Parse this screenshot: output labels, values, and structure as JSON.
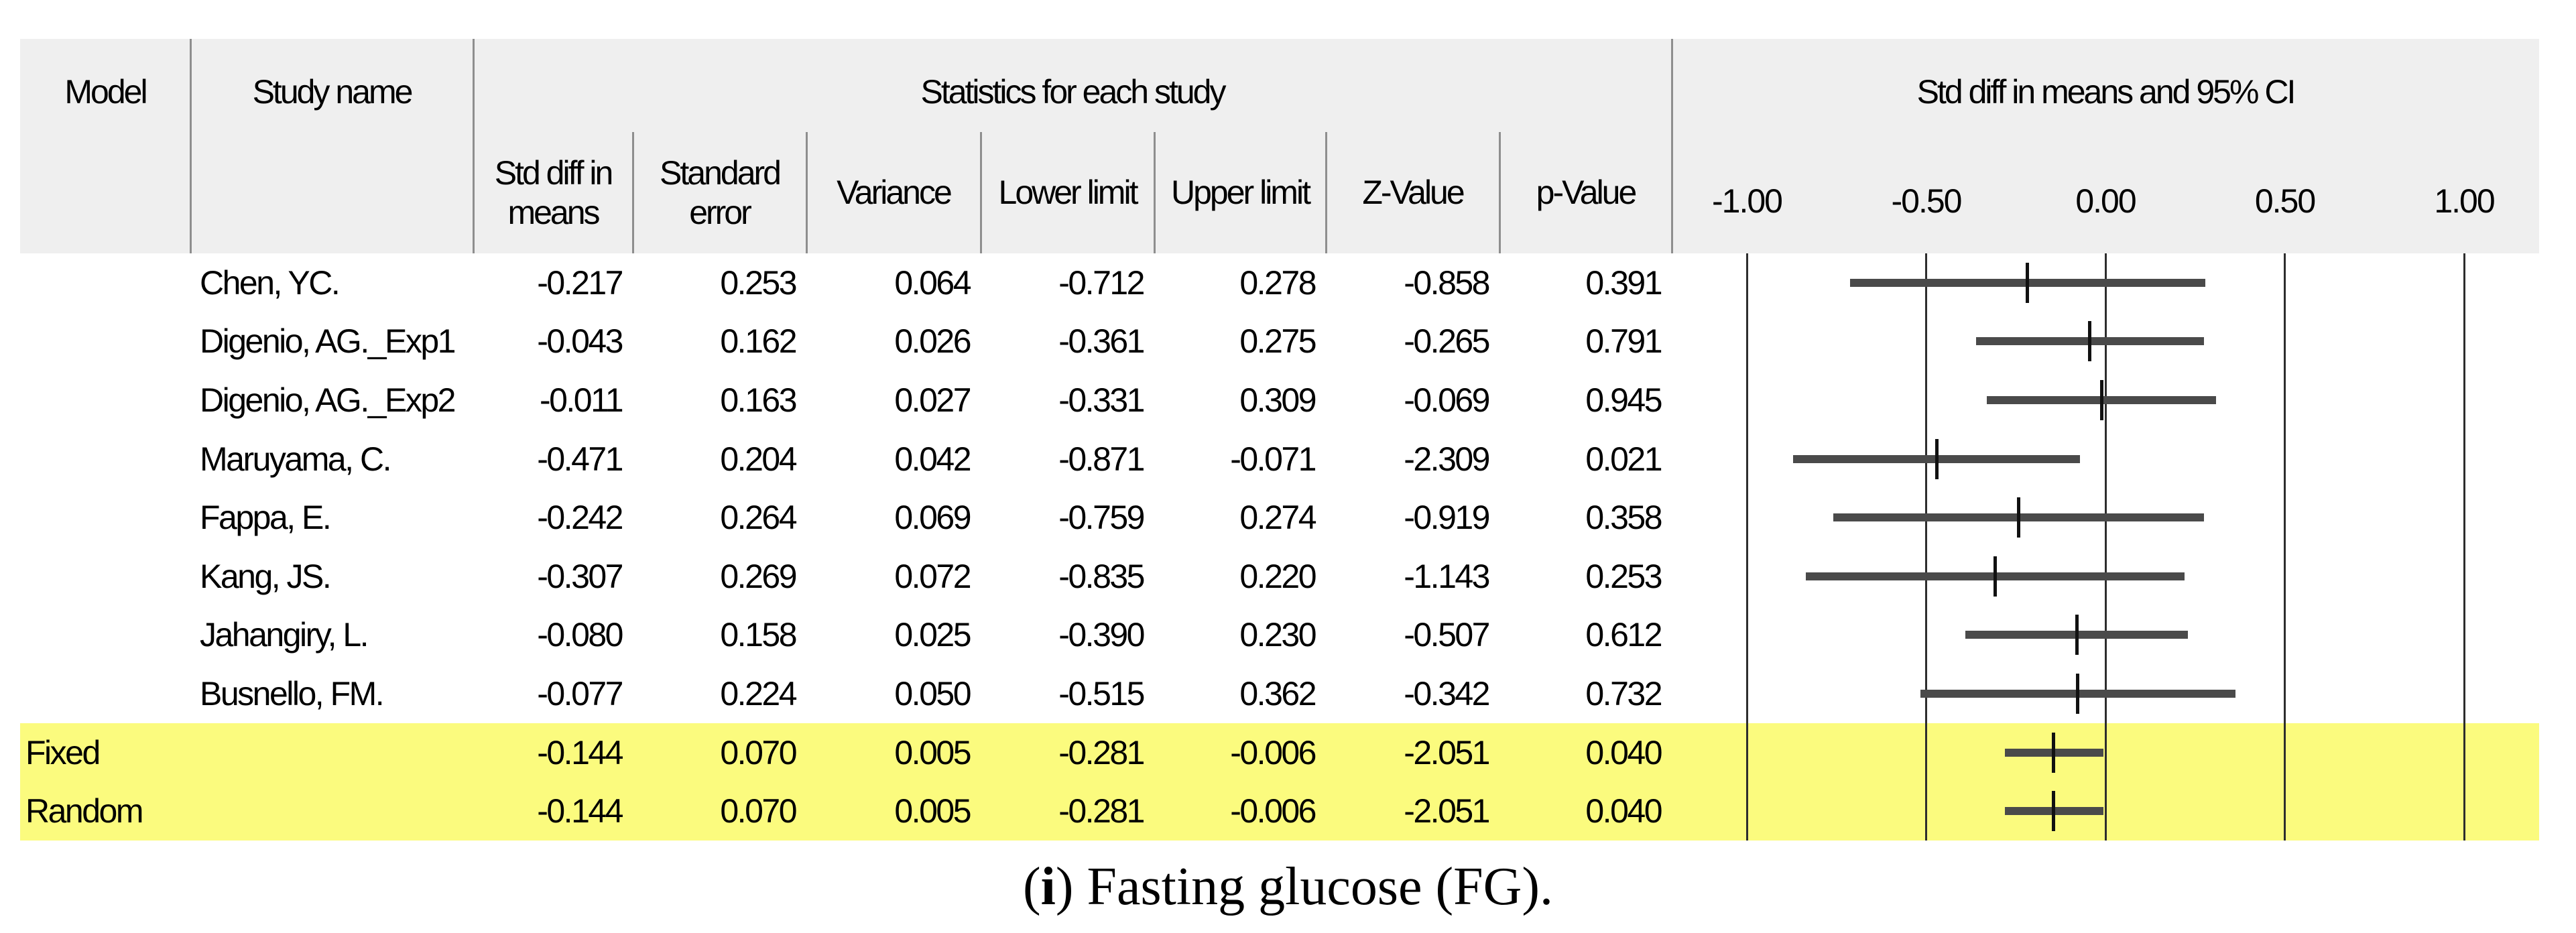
{
  "header": {
    "model": "Model",
    "study_name": "Study name",
    "stats_title": "Statistics for each study",
    "plot_title": "Std diff in means and 95% CI",
    "stat_columns": [
      "Std diff in\nmeans",
      "Standard\nerror",
      "Variance",
      "Lower limit",
      "Upper limit",
      "Z-Value",
      "p-Value"
    ]
  },
  "colors": {
    "header_bg": "#efefef",
    "highlight_row": "#fbfb7e",
    "ci_bar": "#4a4a4a",
    "marker": "#111111",
    "gridline": "#2d2d2d",
    "separator": "#8e8e8e",
    "text": "#000000"
  },
  "caption": {
    "open_paren": "(",
    "label": "i",
    "rest": ") Fasting glucose (FG)."
  },
  "chart_data": {
    "type": "forest",
    "title": "Std diff in means and 95% CI",
    "effect_measure": "Std diff in means",
    "stats_section_title": "Statistics for each study",
    "x_axis": {
      "min": -1.0,
      "max": 1.0,
      "tick_labels": [
        "-1.00",
        "-0.50",
        "0.00",
        "0.50",
        "1.00"
      ]
    },
    "rows": [
      {
        "model": "",
        "study": "Chen, YC.",
        "std_diff_in_means": "-0.217",
        "standard_error": "0.253",
        "variance": "0.064",
        "lower_limit": "-0.712",
        "upper_limit": "0.278",
        "z_value": "-0.858",
        "p_value": "0.391",
        "highlight": false
      },
      {
        "model": "",
        "study": "Digenio, AG._Exp1",
        "std_diff_in_means": "-0.043",
        "standard_error": "0.162",
        "variance": "0.026",
        "lower_limit": "-0.361",
        "upper_limit": "0.275",
        "z_value": "-0.265",
        "p_value": "0.791",
        "highlight": false
      },
      {
        "model": "",
        "study": "Digenio, AG._Exp2",
        "std_diff_in_means": "-0.011",
        "standard_error": "0.163",
        "variance": "0.027",
        "lower_limit": "-0.331",
        "upper_limit": "0.309",
        "z_value": "-0.069",
        "p_value": "0.945",
        "highlight": false
      },
      {
        "model": "",
        "study": "Maruyama, C.",
        "std_diff_in_means": "-0.471",
        "standard_error": "0.204",
        "variance": "0.042",
        "lower_limit": "-0.871",
        "upper_limit": "-0.071",
        "z_value": "-2.309",
        "p_value": "0.021",
        "highlight": false
      },
      {
        "model": "",
        "study": "Fappa, E.",
        "std_diff_in_means": "-0.242",
        "standard_error": "0.264",
        "variance": "0.069",
        "lower_limit": "-0.759",
        "upper_limit": "0.274",
        "z_value": "-0.919",
        "p_value": "0.358",
        "highlight": false
      },
      {
        "model": "",
        "study": "Kang, JS.",
        "std_diff_in_means": "-0.307",
        "standard_error": "0.269",
        "variance": "0.072",
        "lower_limit": "-0.835",
        "upper_limit": "0.220",
        "z_value": "-1.143",
        "p_value": "0.253",
        "highlight": false
      },
      {
        "model": "",
        "study": "Jahangiry, L.",
        "std_diff_in_means": "-0.080",
        "standard_error": "0.158",
        "variance": "0.025",
        "lower_limit": "-0.390",
        "upper_limit": "0.230",
        "z_value": "-0.507",
        "p_value": "0.612",
        "highlight": false
      },
      {
        "model": "",
        "study": "Busnello, FM.",
        "std_diff_in_means": "-0.077",
        "standard_error": "0.224",
        "variance": "0.050",
        "lower_limit": "-0.515",
        "upper_limit": "0.362",
        "z_value": "-0.342",
        "p_value": "0.732",
        "highlight": false
      },
      {
        "model": "Fixed",
        "study": "",
        "std_diff_in_means": "-0.144",
        "standard_error": "0.070",
        "variance": "0.005",
        "lower_limit": "-0.281",
        "upper_limit": "-0.006",
        "z_value": "-2.051",
        "p_value": "0.040",
        "highlight": true
      },
      {
        "model": "Random",
        "study": "",
        "std_diff_in_means": "-0.144",
        "standard_error": "0.070",
        "variance": "0.005",
        "lower_limit": "-0.281",
        "upper_limit": "-0.006",
        "z_value": "-2.051",
        "p_value": "0.040",
        "highlight": true
      }
    ]
  }
}
